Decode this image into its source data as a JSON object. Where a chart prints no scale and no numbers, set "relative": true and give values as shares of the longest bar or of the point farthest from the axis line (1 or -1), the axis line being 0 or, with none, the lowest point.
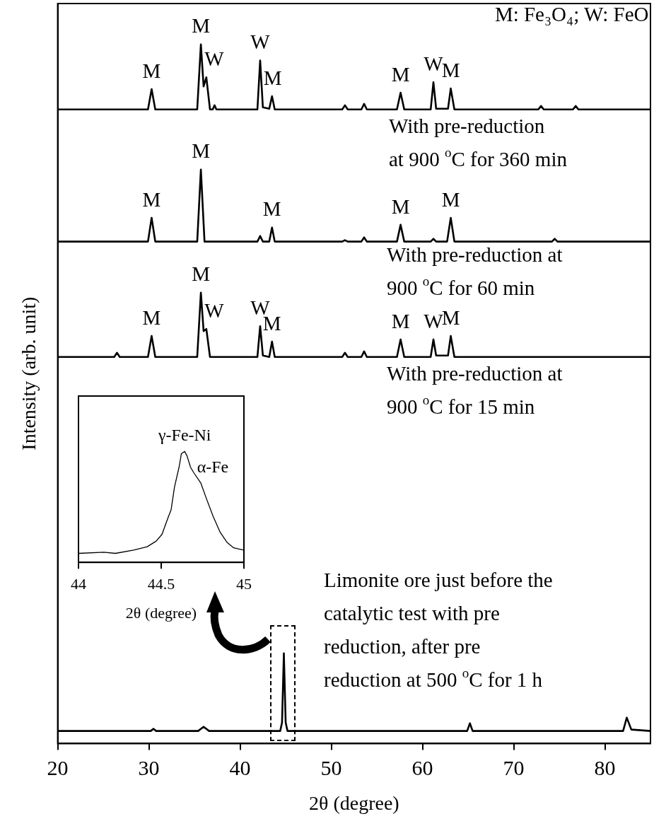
{
  "chart_data": [
    {
      "type": "line",
      "relative": true,
      "xlabel": "2θ (degree)",
      "ylabel": "Intensity (arb. unit)",
      "xlim": [
        20,
        85
      ],
      "xticks": [
        20,
        30,
        40,
        50,
        60,
        70,
        80
      ],
      "grid": false,
      "legend": false,
      "marker": "none",
      "line_style": "solid",
      "series": [
        {
          "color": "#000000",
          "x": [
            20,
            29.9,
            30.3,
            30.7,
            35.3,
            35.7,
            36.0,
            36.3,
            36.7,
            37.0,
            37.2,
            37.4,
            41.9,
            42.2,
            42.5,
            43.2,
            43.5,
            43.8,
            51.2,
            51.5,
            51.8,
            53.3,
            53.6,
            53.9,
            57.2,
            57.6,
            58.0,
            60.9,
            61.2,
            61.5,
            62.8,
            63.1,
            63.5,
            72.7,
            73.0,
            73.3,
            76.5,
            76.8,
            77.1,
            85
          ],
          "values": [
            0.907,
            0.907,
            0.936,
            0.907,
            0.907,
            1.0,
            0.94,
            0.953,
            0.907,
            0.907,
            0.913,
            0.907,
            0.907,
            0.977,
            0.91,
            0.908,
            0.926,
            0.907,
            0.907,
            0.913,
            0.907,
            0.907,
            0.915,
            0.907,
            0.907,
            0.931,
            0.907,
            0.907,
            0.946,
            0.908,
            0.908,
            0.937,
            0.907,
            0.907,
            0.912,
            0.907,
            0.907,
            0.912,
            0.907,
            0.907
          ]
        },
        {
          "color": "#000000",
          "x": [
            20,
            29.9,
            30.3,
            30.7,
            35.3,
            35.7,
            36.1,
            41.9,
            42.2,
            42.5,
            43.2,
            43.5,
            43.8,
            51.2,
            51.5,
            51.8,
            53.3,
            53.6,
            53.9,
            57.2,
            57.6,
            58.0,
            60.9,
            61.2,
            61.5,
            62.7,
            63.1,
            63.5,
            74.2,
            74.5,
            74.8,
            85
          ],
          "values": [
            0.718,
            0.718,
            0.752,
            0.718,
            0.718,
            0.821,
            0.718,
            0.718,
            0.726,
            0.718,
            0.718,
            0.738,
            0.718,
            0.718,
            0.72,
            0.718,
            0.718,
            0.724,
            0.718,
            0.718,
            0.742,
            0.718,
            0.718,
            0.722,
            0.718,
            0.718,
            0.752,
            0.718,
            0.718,
            0.722,
            0.718,
            0.718
          ]
        },
        {
          "color": "#000000",
          "x": [
            20,
            26.2,
            26.5,
            26.8,
            29.9,
            30.3,
            30.7,
            35.3,
            35.7,
            36.0,
            36.3,
            36.7,
            41.9,
            42.2,
            42.5,
            43.2,
            43.5,
            43.8,
            51.2,
            51.5,
            51.8,
            53.3,
            53.6,
            53.9,
            57.2,
            57.6,
            58.0,
            60.9,
            61.2,
            61.5,
            62.8,
            63.1,
            63.5,
            85
          ],
          "values": [
            0.553,
            0.553,
            0.559,
            0.553,
            0.553,
            0.583,
            0.553,
            0.553,
            0.645,
            0.59,
            0.593,
            0.553,
            0.553,
            0.597,
            0.555,
            0.553,
            0.575,
            0.553,
            0.553,
            0.559,
            0.553,
            0.553,
            0.561,
            0.553,
            0.553,
            0.578,
            0.553,
            0.553,
            0.578,
            0.555,
            0.555,
            0.583,
            0.553,
            0.553
          ]
        },
        {
          "color": "#000000",
          "x": [
            20,
            30.2,
            30.5,
            30.8,
            35.4,
            36.0,
            36.6,
            44.4,
            44.6,
            44.8,
            45.0,
            45.2,
            64.9,
            65.2,
            65.5,
            82.0,
            82.4,
            82.9,
            85
          ],
          "values": [
            0.018,
            0.018,
            0.021,
            0.018,
            0.018,
            0.024,
            0.018,
            0.018,
            0.03,
            0.129,
            0.03,
            0.018,
            0.018,
            0.029,
            0.018,
            0.018,
            0.037,
            0.02,
            0.018
          ]
        }
      ],
      "annotations": [
        "M: Fe₃O₄; W: FeO",
        "With pre-reduction\nat 900 $^{o}$C for 360 min",
        "With pre-reduction at\n900 $^{o}$C for 60 min",
        "With pre-reduction at\n900 $^{o}$C for 15 min",
        "Limonite ore just before the\ncatalytic test with pre\nreduction, after pre\nreduction at 500 $^{o}$C for 1 h",
        {
          "text": "M",
          "x": 30.3,
          "y": 0.936
        },
        {
          "text": "M",
          "x": 35.7,
          "y": 1.0
        },
        {
          "text": "W",
          "x": 36.3,
          "y": 0.953
        },
        {
          "text": "W",
          "x": 42.2,
          "y": 0.977
        },
        {
          "text": "M",
          "x": 43.5,
          "y": 0.926
        },
        {
          "text": "M",
          "x": 57.6,
          "y": 0.931
        },
        {
          "text": "W",
          "x": 61.2,
          "y": 0.946
        },
        {
          "text": "M",
          "x": 63.1,
          "y": 0.937
        },
        {
          "text": "M",
          "x": 30.3,
          "y": 0.752
        },
        {
          "text": "M",
          "x": 35.7,
          "y": 0.821
        },
        {
          "text": "M",
          "x": 43.5,
          "y": 0.738
        },
        {
          "text": "M",
          "x": 57.6,
          "y": 0.742
        },
        {
          "text": "M",
          "x": 63.1,
          "y": 0.752
        },
        {
          "text": "M",
          "x": 30.3,
          "y": 0.583
        },
        {
          "text": "M",
          "x": 35.7,
          "y": 0.645
        },
        {
          "text": "W",
          "x": 36.3,
          "y": 0.593
        },
        {
          "text": "W",
          "x": 42.2,
          "y": 0.597
        },
        {
          "text": "M",
          "x": 43.5,
          "y": 0.575
        },
        {
          "text": "M",
          "x": 57.6,
          "y": 0.578
        },
        {
          "text": "W",
          "x": 61.2,
          "y": 0.578
        },
        {
          "text": "M",
          "x": 63.1,
          "y": 0.583
        }
      ]
    },
    {
      "type": "line",
      "relative": true,
      "xlabel": "2θ (degree)",
      "xlim": [
        44,
        45
      ],
      "xticks": [
        44,
        44.5,
        45
      ],
      "grid": false,
      "legend": false,
      "marker": "none",
      "line_style": "solid",
      "series": [
        {
          "color": "#000000",
          "x": [
            44.0,
            44.154,
            44.223,
            44.333,
            44.415,
            44.47,
            44.505,
            44.539,
            44.56,
            44.58,
            44.608,
            44.622,
            44.642,
            44.656,
            44.677,
            44.697,
            44.739,
            44.773,
            44.814,
            44.856,
            44.897,
            44.938,
            44.966,
            45.0
          ],
          "values": [
            0.081,
            0.091,
            0.081,
            0.111,
            0.141,
            0.192,
            0.253,
            0.394,
            0.475,
            0.677,
            0.859,
            0.98,
            1.0,
            0.96,
            0.859,
            0.808,
            0.717,
            0.576,
            0.414,
            0.273,
            0.182,
            0.131,
            0.121,
            0.111
          ]
        }
      ],
      "annotations": [
        {
          "text": "γ-Fe-Ni",
          "x": 44.642,
          "y": 1.0
        },
        {
          "text": "α-Fe",
          "x": 44.739,
          "y": 0.717
        }
      ]
    }
  ]
}
